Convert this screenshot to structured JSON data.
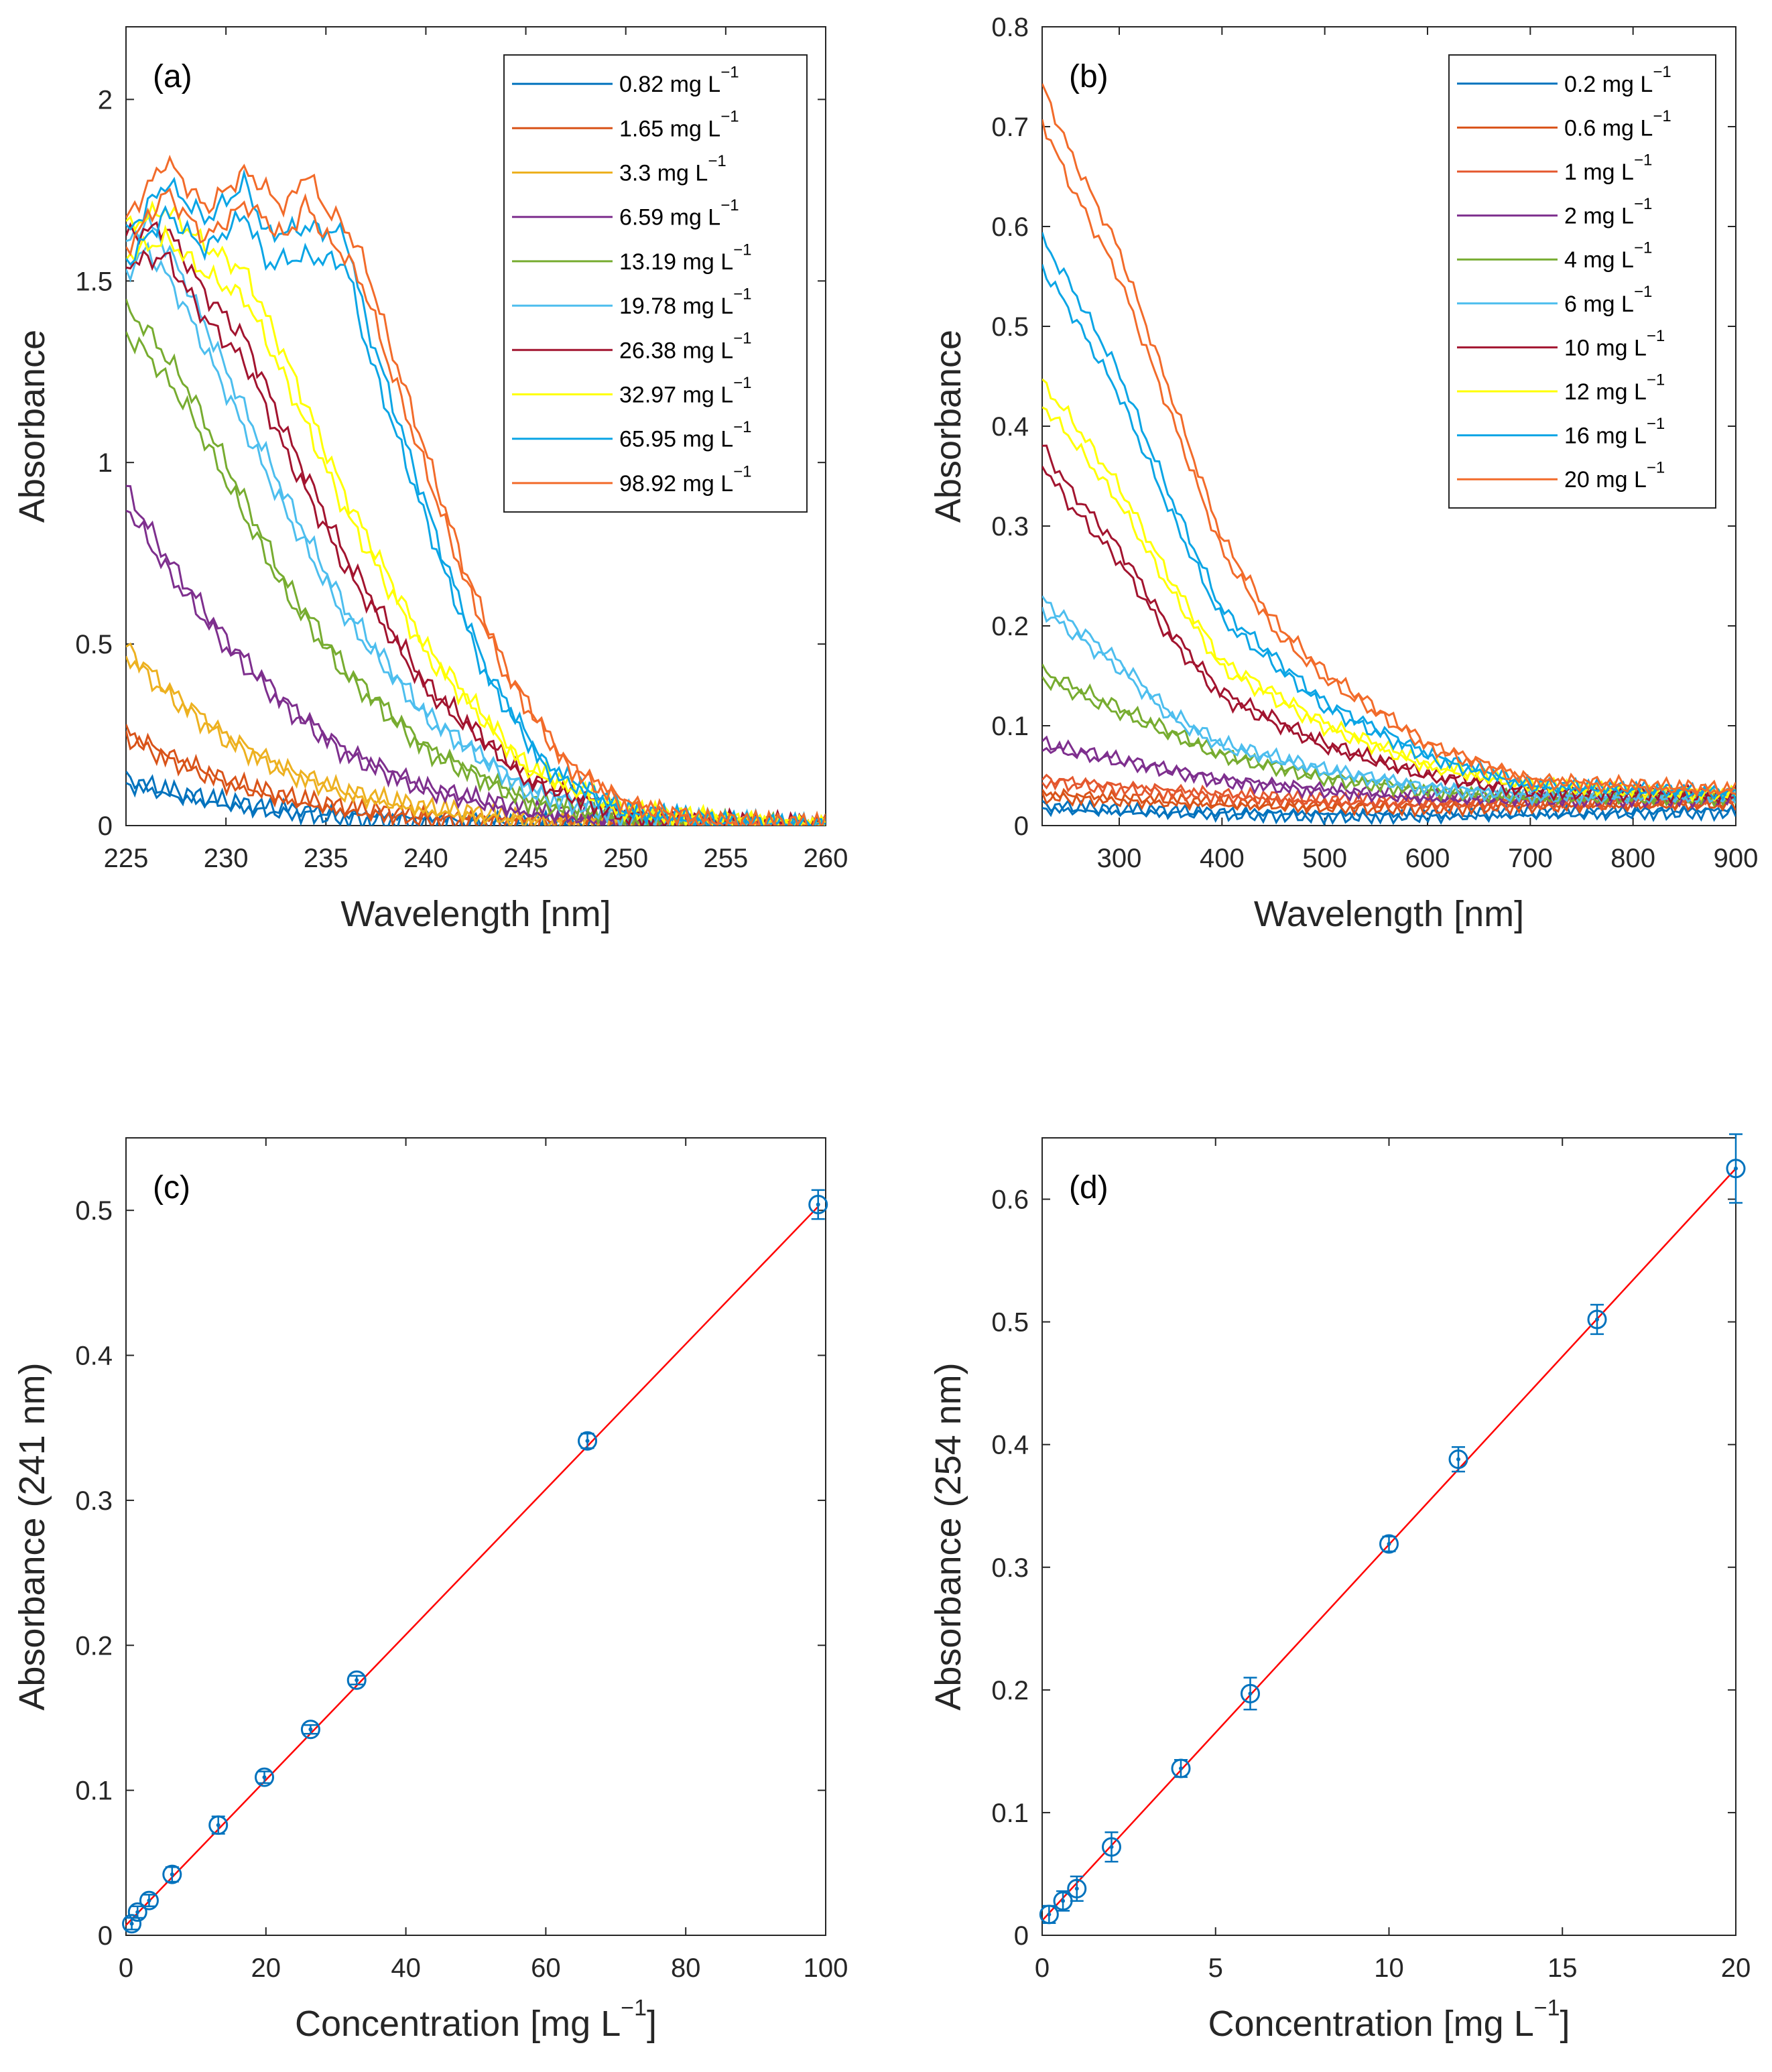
{
  "chart_data": [
    {
      "id": "a",
      "type": "line",
      "panel_label": "(a)",
      "xlabel": "Wavelength [nm]",
      "ylabel": "Absorbance",
      "xlim": [
        225,
        260
      ],
      "ylim": [
        0,
        2.2
      ],
      "xticks": [
        "225",
        "230",
        "235",
        "240",
        "245",
        "250",
        "255",
        "260"
      ],
      "yticks": [
        "0",
        "0.5",
        "1",
        "1.5",
        "2"
      ],
      "legend": "top-right",
      "series": [
        {
          "name": "0.82 mg L",
          "unit_exp": "−1",
          "color": "#0072BD",
          "points": [
            [
              225,
              0.12
            ],
            [
              228,
              0.08
            ],
            [
              232,
              0.045
            ],
            [
              236,
              0.025
            ],
            [
              240,
              0.013
            ],
            [
              245,
              0.006
            ],
            [
              250,
              0.003
            ],
            [
              260,
              0.0
            ]
          ]
        },
        {
          "name": "1.65 mg L",
          "unit_exp": "−1",
          "color": "#D95319",
          "points": [
            [
              225,
              0.25
            ],
            [
              227,
              0.19
            ],
            [
              230,
              0.12
            ],
            [
              233,
              0.075
            ],
            [
              236,
              0.045
            ],
            [
              240,
              0.022
            ],
            [
              245,
              0.01
            ],
            [
              250,
              0.004
            ],
            [
              260,
              0.0
            ]
          ]
        },
        {
          "name": "3.3 mg L",
          "unit_exp": "−1",
          "color": "#EDB120",
          "points": [
            [
              225,
              0.48
            ],
            [
              227,
              0.37
            ],
            [
              230,
              0.24
            ],
            [
              233,
              0.15
            ],
            [
              236,
              0.09
            ],
            [
              240,
              0.045
            ],
            [
              245,
              0.018
            ],
            [
              250,
              0.007
            ],
            [
              260,
              0.0
            ]
          ]
        },
        {
          "name": "6.59 mg L",
          "unit_exp": "−1",
          "color": "#7E2F8E",
          "points": [
            [
              225,
              0.9
            ],
            [
              227,
              0.72
            ],
            [
              230,
              0.5
            ],
            [
              233,
              0.33
            ],
            [
              236,
              0.2
            ],
            [
              240,
              0.1
            ],
            [
              245,
              0.04
            ],
            [
              250,
              0.012
            ],
            [
              260,
              0.0
            ]
          ]
        },
        {
          "name": "13.19 mg L",
          "unit_exp": "−1",
          "color": "#77AC30",
          "points": [
            [
              225,
              1.38
            ],
            [
              226,
              1.33
            ],
            [
              228,
              1.18
            ],
            [
              230,
              0.97
            ],
            [
              233,
              0.65
            ],
            [
              236,
              0.42
            ],
            [
              240,
              0.21
            ],
            [
              245,
              0.07
            ],
            [
              250,
              0.02
            ],
            [
              260,
              0.0
            ]
          ]
        },
        {
          "name": "19.78 mg L",
          "unit_exp": "−1",
          "color": "#4DBEEE",
          "points": [
            [
              225,
              1.55
            ],
            [
              226,
              1.62
            ],
            [
              227,
              1.55
            ],
            [
              228,
              1.45
            ],
            [
              230,
              1.22
            ],
            [
              233,
              0.88
            ],
            [
              236,
              0.58
            ],
            [
              240,
              0.3
            ],
            [
              245,
              0.1
            ],
            [
              250,
              0.025
            ],
            [
              260,
              0.0
            ]
          ]
        },
        {
          "name": "26.38 mg L",
          "unit_exp": "−1",
          "color": "#A2142F",
          "points": [
            [
              225,
              1.58
            ],
            [
              227,
              1.6
            ],
            [
              229,
              1.42
            ],
            [
              231,
              1.3
            ],
            [
              233,
              1.05
            ],
            [
              236,
              0.72
            ],
            [
              240,
              0.38
            ],
            [
              245,
              0.13
            ],
            [
              250,
              0.03
            ],
            [
              260,
              0.0
            ]
          ]
        },
        {
          "name": "32.97 mg L",
          "unit_exp": "−1",
          "color": "#FFFF00",
          "points": [
            [
              225,
              1.6
            ],
            [
              227,
              1.65
            ],
            [
              229,
              1.55
            ],
            [
              231,
              1.48
            ],
            [
              233,
              1.25
            ],
            [
              236,
              0.88
            ],
            [
              240,
              0.48
            ],
            [
              245,
              0.16
            ],
            [
              250,
              0.04
            ],
            [
              260,
              0.0
            ]
          ]
        },
        {
          "name": "65.95 mg L",
          "unit_exp": "−1",
          "color": "#0BA5E5",
          "points": [
            [
              225,
              1.58
            ],
            [
              227,
              1.72
            ],
            [
              229,
              1.62
            ],
            [
              231,
              1.72
            ],
            [
              232,
              1.58
            ],
            [
              234,
              1.6
            ],
            [
              236,
              1.58
            ],
            [
              237,
              1.35
            ],
            [
              239,
              1.02
            ],
            [
              241,
              0.7
            ],
            [
              243,
              0.42
            ],
            [
              246,
              0.16
            ],
            [
              250,
              0.04
            ],
            [
              255,
              0.008
            ],
            [
              260,
              0.0
            ]
          ]
        },
        {
          "name": "98.92 mg L",
          "unit_exp": "−1",
          "color": "#F26B2A",
          "points": [
            [
              225,
              1.62
            ],
            [
              227,
              1.78
            ],
            [
              229,
              1.65
            ],
            [
              231,
              1.75
            ],
            [
              233,
              1.65
            ],
            [
              234,
              1.75
            ],
            [
              235,
              1.65
            ],
            [
              236,
              1.6
            ],
            [
              237,
              1.5
            ],
            [
              238,
              1.32
            ],
            [
              240,
              1.0
            ],
            [
              242,
              0.68
            ],
            [
              244,
              0.42
            ],
            [
              247,
              0.17
            ],
            [
              250,
              0.06
            ],
            [
              254,
              0.012
            ],
            [
              260,
              0.0
            ]
          ]
        }
      ]
    },
    {
      "id": "b",
      "type": "line",
      "panel_label": "(b)",
      "xlabel": "Wavelength [nm]",
      "ylabel": "Absorbance",
      "xlim": [
        225,
        900
      ],
      "ylim": [
        0,
        0.8
      ],
      "xticks": [
        "300",
        "400",
        "500",
        "600",
        "700",
        "800",
        "900"
      ],
      "yticks": [
        "0",
        "0.1",
        "0.2",
        "0.3",
        "0.4",
        "0.5",
        "0.6",
        "0.7",
        "0.8"
      ],
      "legend": "top-right",
      "series": [
        {
          "name": "0.2 mg L",
          "unit_exp": "−1",
          "color": "#0072BD",
          "points": [
            [
              225,
              0.018
            ],
            [
              300,
              0.015
            ],
            [
              400,
              0.012
            ],
            [
              500,
              0.01
            ],
            [
              600,
              0.01
            ],
            [
              700,
              0.012
            ],
            [
              900,
              0.014
            ]
          ]
        },
        {
          "name": "0.6 mg L",
          "unit_exp": "−1",
          "color": "#D95319",
          "points": [
            [
              225,
              0.03
            ],
            [
              300,
              0.026
            ],
            [
              400,
              0.022
            ],
            [
              500,
              0.019
            ],
            [
              600,
              0.018
            ],
            [
              700,
              0.02
            ],
            [
              900,
              0.022
            ]
          ]
        },
        {
          "name": "1 mg L",
          "unit_exp": "−1",
          "color": "#E4572E",
          "points": [
            [
              225,
              0.045
            ],
            [
              300,
              0.038
            ],
            [
              400,
              0.03
            ],
            [
              500,
              0.025
            ],
            [
              600,
              0.023
            ],
            [
              700,
              0.024
            ],
            [
              900,
              0.026
            ]
          ]
        },
        {
          "name": "2 mg L",
          "unit_exp": "−1",
          "color": "#7E2F8E",
          "points": [
            [
              225,
              0.08
            ],
            [
              300,
              0.065
            ],
            [
              400,
              0.045
            ],
            [
              500,
              0.035
            ],
            [
              600,
              0.028
            ],
            [
              700,
              0.026
            ],
            [
              900,
              0.027
            ]
          ]
        },
        {
          "name": "4 mg L",
          "unit_exp": "−1",
          "color": "#77AC30",
          "points": [
            [
              225,
              0.15
            ],
            [
              300,
              0.115
            ],
            [
              400,
              0.07
            ],
            [
              500,
              0.048
            ],
            [
              600,
              0.035
            ],
            [
              700,
              0.028
            ],
            [
              900,
              0.028
            ]
          ]
        },
        {
          "name": "6 mg L",
          "unit_exp": "−1",
          "color": "#4DBEEE",
          "points": [
            [
              225,
              0.22
            ],
            [
              250,
              0.2
            ],
            [
              300,
              0.16
            ],
            [
              350,
              0.11
            ],
            [
              400,
              0.08
            ],
            [
              500,
              0.055
            ],
            [
              600,
              0.038
            ],
            [
              700,
              0.03
            ],
            [
              900,
              0.028
            ]
          ]
        },
        {
          "name": "10 mg L",
          "unit_exp": "−1",
          "color": "#A2142F",
          "points": [
            [
              225,
              0.37
            ],
            [
              250,
              0.33
            ],
            [
              300,
              0.27
            ],
            [
              350,
              0.19
            ],
            [
              400,
              0.13
            ],
            [
              500,
              0.08
            ],
            [
              600,
              0.05
            ],
            [
              700,
              0.035
            ],
            [
              900,
              0.03
            ]
          ]
        },
        {
          "name": "12 mg L",
          "unit_exp": "−1",
          "color": "#FFFF00",
          "points": [
            [
              225,
              0.43
            ],
            [
              250,
              0.4
            ],
            [
              300,
              0.33
            ],
            [
              350,
              0.24
            ],
            [
              400,
              0.16
            ],
            [
              500,
              0.1
            ],
            [
              600,
              0.06
            ],
            [
              700,
              0.04
            ],
            [
              900,
              0.032
            ]
          ]
        },
        {
          "name": "16 mg L",
          "unit_exp": "−1",
          "color": "#0BA5E5",
          "points": [
            [
              225,
              0.57
            ],
            [
              250,
              0.53
            ],
            [
              300,
              0.44
            ],
            [
              350,
              0.32
            ],
            [
              400,
              0.21
            ],
            [
              500,
              0.12
            ],
            [
              600,
              0.07
            ],
            [
              700,
              0.04
            ],
            [
              900,
              0.033
            ]
          ]
        },
        {
          "name": "20 mg L",
          "unit_exp": "−1",
          "color": "#F26B2A",
          "points": [
            [
              225,
              0.72
            ],
            [
              250,
              0.66
            ],
            [
              300,
              0.56
            ],
            [
              350,
              0.42
            ],
            [
              400,
              0.28
            ],
            [
              450,
              0.2
            ],
            [
              500,
              0.15
            ],
            [
              600,
              0.08
            ],
            [
              700,
              0.045
            ],
            [
              900,
              0.035
            ]
          ]
        }
      ]
    },
    {
      "id": "c",
      "type": "scatter",
      "panel_label": "(c)",
      "xlabel": "Concentration [mg L",
      "xlabel_exp": "−1",
      "xlabel_end": "]",
      "ylabel": "Absorbance (241 nm)",
      "xlim": [
        0,
        100
      ],
      "ylim": [
        0,
        0.55
      ],
      "xticks": [
        "0",
        "20",
        "40",
        "60",
        "80",
        "100"
      ],
      "yticks": [
        "0",
        "0.1",
        "0.2",
        "0.3",
        "0.4",
        "0.5"
      ],
      "marker_color": "#0072BD",
      "fit_color": "#FF0000",
      "fit_line": [
        [
          0,
          0.007
        ],
        [
          99,
          0.503
        ]
      ],
      "x": [
        0.82,
        1.65,
        3.3,
        6.59,
        13.19,
        19.78,
        26.38,
        32.97,
        65.95,
        98.92
      ],
      "y": [
        0.008,
        0.016,
        0.024,
        0.042,
        0.076,
        0.109,
        0.142,
        0.176,
        0.341,
        0.504
      ],
      "err": [
        0.004,
        0.004,
        0.004,
        0.005,
        0.006,
        0.004,
        0.003,
        0.003,
        0.005,
        0.01
      ]
    },
    {
      "id": "d",
      "type": "scatter",
      "panel_label": "(d)",
      "xlabel": "Concentration [mg L",
      "xlabel_exp": "−1",
      "xlabel_end": "]",
      "ylabel": "Absorbance (254 nm)",
      "xlim": [
        0,
        20
      ],
      "ylim": [
        0,
        0.65
      ],
      "xticks": [
        "0",
        "5",
        "10",
        "15",
        "20"
      ],
      "yticks": [
        "0",
        "0.1",
        "0.2",
        "0.3",
        "0.4",
        "0.5",
        "0.6"
      ],
      "marker_color": "#0072BD",
      "fit_color": "#FF0000",
      "fit_line": [
        [
          0,
          0.012
        ],
        [
          20,
          0.625
        ]
      ],
      "x": [
        0.2,
        0.6,
        1,
        2,
        4,
        6,
        10,
        12,
        16,
        20
      ],
      "y": [
        0.017,
        0.028,
        0.038,
        0.072,
        0.136,
        0.197,
        0.319,
        0.388,
        0.502,
        0.625
      ],
      "err": [
        0.007,
        0.008,
        0.01,
        0.012,
        0.007,
        0.013,
        0.006,
        0.01,
        0.012,
        0.028
      ]
    }
  ]
}
